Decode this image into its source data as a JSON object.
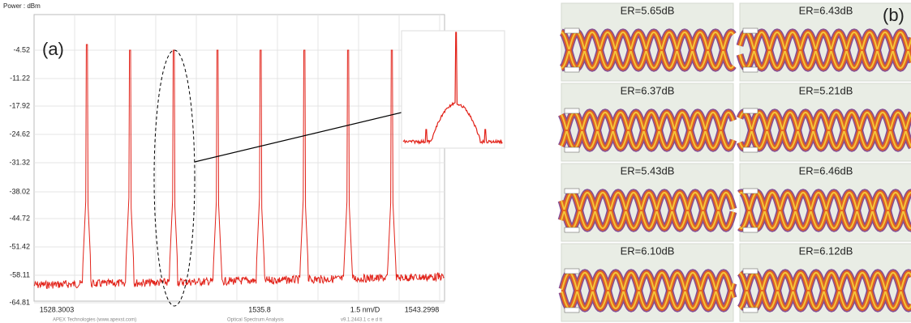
{
  "spectrum": {
    "y_label": "Power : dBm",
    "panel": "(a)",
    "yticks": [
      "-4.52",
      "-11.22",
      "-17.92",
      "-24.62",
      "-31.32",
      "-38.02",
      "-44.72",
      "-51.42",
      "-58.11",
      "-64.81"
    ],
    "xticks": [
      "1528.3003",
      "1535.8",
      "1.5 nm/D",
      "1543.2998"
    ],
    "footer": [
      "APEX Technologies (www.apexst.com)",
      "Optical Spectrum Analysis",
      "v9.1.2443.1 c e d tt"
    ]
  },
  "eyes": {
    "panel": "(b)",
    "labels": [
      "ER=5.65dB",
      "ER=6.43dB",
      "ER=6.37dB",
      "ER=5.21dB",
      "ER=5.43dB",
      "ER=6.46dB",
      "ER=6.10dB",
      "ER=6.12dB"
    ]
  }
}
